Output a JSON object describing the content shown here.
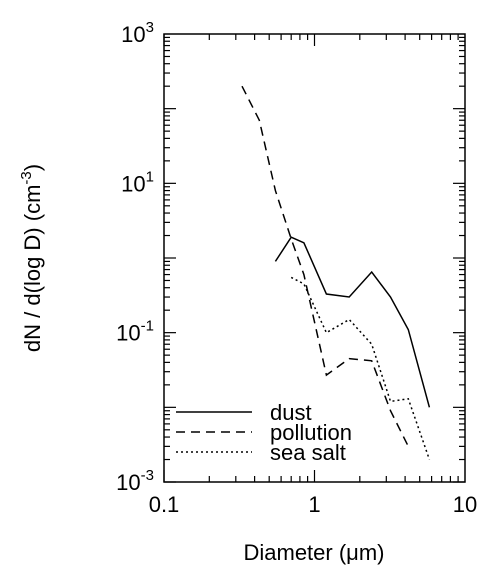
{
  "chart_data": {
    "type": "line",
    "xlabel": "Diameter (μm)",
    "ylabel_main": "dN / d(log D) (cm",
    "ylabel_sup": "-3",
    "ylabel_close": ")",
    "xscale": "log",
    "yscale": "log",
    "xlim": [
      0.1,
      10
    ],
    "ylim": [
      0.001,
      1000
    ],
    "x_ticks": [
      {
        "value": 0.1,
        "label": "0.1"
      },
      {
        "value": 1,
        "label": "1"
      },
      {
        "value": 10,
        "label": "10"
      }
    ],
    "y_ticks": [
      {
        "value": 0.001,
        "base": "10",
        "exp": "-3"
      },
      {
        "value": 0.1,
        "base": "10",
        "exp": "-1"
      },
      {
        "value": 10,
        "base": "10",
        "exp": "1"
      },
      {
        "value": 1000,
        "base": "10",
        "exp": "3"
      }
    ],
    "grid": false,
    "legend_position": "bottom-left",
    "series": [
      {
        "name": "dust",
        "style": "solid",
        "x": [
          0.55,
          0.7,
          0.85,
          1.2,
          1.7,
          2.4,
          3.2,
          4.2,
          5.8
        ],
        "y": [
          0.9,
          1.9,
          1.6,
          0.33,
          0.3,
          0.65,
          0.3,
          0.11,
          0.01
        ]
      },
      {
        "name": "pollution",
        "style": "dashed",
        "x": [
          0.33,
          0.43,
          0.55,
          0.7,
          0.85,
          1.2,
          1.7,
          2.4,
          3.2,
          4.2
        ],
        "y": [
          200,
          70,
          8,
          1.8,
          0.6,
          0.027,
          0.045,
          0.042,
          0.009,
          0.003
        ]
      },
      {
        "name": "sea salt",
        "style": "dotted",
        "x": [
          0.7,
          0.85,
          1.2,
          1.7,
          2.4,
          3.2,
          4.2,
          5.8
        ],
        "y": [
          0.55,
          0.45,
          0.1,
          0.15,
          0.07,
          0.012,
          0.013,
          0.002
        ]
      }
    ]
  }
}
